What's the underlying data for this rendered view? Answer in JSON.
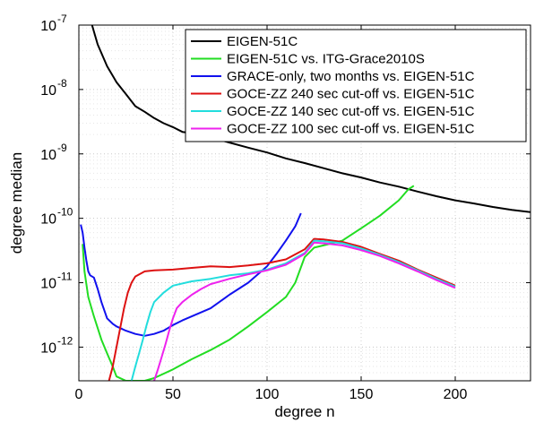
{
  "chart_data": {
    "type": "line",
    "xlabel": "degree n",
    "ylabel": "degree median",
    "x_scale": "linear",
    "y_scale": "log",
    "xlim": [
      0,
      240
    ],
    "ylim": [
      3e-13,
      1e-07
    ],
    "grid": true,
    "legend_position": "top-right",
    "x_ticks": [
      0,
      50,
      100,
      150,
      200
    ],
    "x_tick_labels": [
      "0",
      "50",
      "100",
      "150",
      "200"
    ],
    "y_ticks": [
      1e-12,
      1e-11,
      1e-10,
      1e-09,
      1e-08,
      1e-07
    ],
    "y_tick_labels": [
      {
        "base": "10",
        "exp": "-12"
      },
      {
        "base": "10",
        "exp": "-11"
      },
      {
        "base": "10",
        "exp": "-10"
      },
      {
        "base": "10",
        "exp": "-9"
      },
      {
        "base": "10",
        "exp": "-8"
      },
      {
        "base": "10",
        "exp": "-7"
      }
    ],
    "series": [
      {
        "name": "EIGEN-51C",
        "color": "#000000",
        "x": [
          7,
          10,
          15,
          20,
          25,
          30,
          35,
          40,
          45,
          50,
          55,
          60,
          65,
          70,
          80,
          90,
          100,
          110,
          120,
          130,
          140,
          150,
          160,
          170,
          180,
          190,
          200,
          210,
          220,
          230,
          240
        ],
        "y": [
          1e-07,
          5e-08,
          2.3e-08,
          1.3e-08,
          8.5e-09,
          5.5e-09,
          4.5e-09,
          3.6e-09,
          3e-09,
          2.6e-09,
          2.2e-09,
          2.1e-09,
          2e-09,
          1.8e-09,
          1.5e-09,
          1.25e-09,
          1.05e-09,
          8.5e-10,
          7.2e-10,
          6e-10,
          5e-10,
          4.3e-10,
          3.6e-10,
          3.1e-10,
          2.6e-10,
          2.2e-10,
          1.9e-10,
          1.7e-10,
          1.5e-10,
          1.35e-10,
          1.25e-10
        ]
      },
      {
        "name": "EIGEN-51C vs. ITG-Grace2010S",
        "color": "#22dd22",
        "x": [
          2,
          3,
          5,
          8,
          12,
          15,
          18,
          20,
          25,
          30,
          35,
          40,
          50,
          60,
          70,
          80,
          90,
          100,
          110,
          115,
          120,
          125,
          130,
          140,
          150,
          160,
          170,
          175,
          178
        ],
        "y": [
          4e-11,
          1.5e-11,
          6e-12,
          3e-12,
          1.3e-12,
          8e-13,
          5e-13,
          3.5e-13,
          3e-13,
          3e-13,
          3e-13,
          3.3e-13,
          4.5e-13,
          6.5e-13,
          9e-13,
          1.3e-12,
          2.1e-12,
          3.5e-12,
          6e-12,
          1e-11,
          2.5e-11,
          3.5e-11,
          3.8e-11,
          4.5e-11,
          7e-11,
          1.1e-10,
          1.9e-10,
          2.8e-10,
          3.2e-10
        ]
      },
      {
        "name": "GRACE-only, two months vs. EIGEN-51C",
        "color": "#1111ee",
        "x": [
          1,
          2,
          3,
          4,
          5,
          6,
          8,
          10,
          12,
          15,
          18,
          20,
          25,
          30,
          35,
          40,
          45,
          50,
          55,
          60,
          70,
          80,
          90,
          100,
          105,
          110,
          115,
          118
        ],
        "y": [
          8e-11,
          6e-11,
          3.5e-11,
          2.2e-11,
          1.5e-11,
          1.3e-11,
          1.2e-11,
          8e-12,
          5e-12,
          2.8e-12,
          2.3e-12,
          2.1e-12,
          1.8e-12,
          1.6e-12,
          1.5e-12,
          1.6e-12,
          1.8e-12,
          2.2e-12,
          2.6e-12,
          3e-12,
          4e-12,
          6.5e-12,
          1e-11,
          1.8e-11,
          2.8e-11,
          4.5e-11,
          7.5e-11,
          1.2e-10
        ]
      },
      {
        "name": "GOCE-ZZ 240 sec cut-off vs. EIGEN-51C",
        "color": "#dd1111",
        "x": [
          16,
          18,
          20,
          22,
          24,
          26,
          28,
          30,
          35,
          40,
          50,
          60,
          70,
          80,
          90,
          100,
          110,
          120,
          125,
          130,
          140,
          150,
          160,
          170,
          180,
          190,
          200
        ],
        "y": [
          3e-13,
          5e-13,
          1e-12,
          2e-12,
          4e-12,
          7e-12,
          1e-11,
          1.25e-11,
          1.5e-11,
          1.55e-11,
          1.6e-11,
          1.7e-11,
          1.8e-11,
          1.75e-11,
          1.85e-11,
          2e-11,
          2.3e-11,
          3.3e-11,
          4.8e-11,
          4.7e-11,
          4.3e-11,
          3.6e-11,
          2.8e-11,
          2.2e-11,
          1.6e-11,
          1.2e-11,
          9e-12
        ]
      },
      {
        "name": "GOCE-ZZ 140 sec cut-off vs. EIGEN-51C",
        "color": "#22dddd",
        "x": [
          28,
          30,
          32,
          34,
          36,
          38,
          40,
          45,
          50,
          60,
          70,
          80,
          90,
          100,
          110,
          120,
          125,
          130,
          140,
          150,
          160,
          170,
          180,
          190,
          200
        ],
        "y": [
          3e-13,
          5e-13,
          8e-13,
          1.3e-12,
          2.2e-12,
          3.5e-12,
          5e-12,
          7e-12,
          9e-12,
          1.05e-11,
          1.15e-11,
          1.3e-11,
          1.4e-11,
          1.6e-11,
          2e-11,
          2.9e-11,
          4.5e-11,
          4.4e-11,
          4.1e-11,
          3.4e-11,
          2.7e-11,
          2.1e-11,
          1.55e-11,
          1.15e-11,
          8.7e-12
        ]
      },
      {
        "name": "GOCE-ZZ 100 sec cut-off vs. EIGEN-51C",
        "color": "#ee22ee",
        "x": [
          40,
          42,
          44,
          46,
          48,
          50,
          52,
          55,
          60,
          65,
          70,
          80,
          90,
          100,
          110,
          120,
          125,
          130,
          140,
          150,
          160,
          170,
          180,
          190,
          200
        ],
        "y": [
          3e-13,
          4.5e-13,
          7e-13,
          1.1e-12,
          1.8e-12,
          2.8e-12,
          4e-12,
          5e-12,
          6.5e-12,
          8e-12,
          9.5e-12,
          1.15e-11,
          1.35e-11,
          1.55e-11,
          1.9e-11,
          2.8e-11,
          4.2e-11,
          4.1e-11,
          3.8e-11,
          3.2e-11,
          2.6e-11,
          2e-11,
          1.5e-11,
          1.1e-11,
          8.3e-12
        ]
      }
    ]
  }
}
